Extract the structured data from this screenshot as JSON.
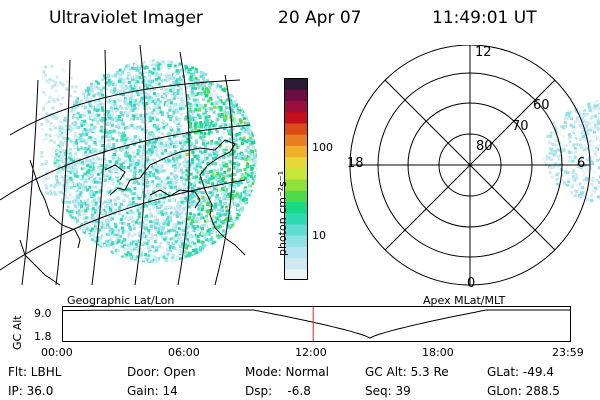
{
  "header": {
    "title": "Ultraviolet Imager",
    "date": "20 Apr 07",
    "time": "11:49:01 UT"
  },
  "colorbar": {
    "unit_label": "photon cm⁻²s⁻¹",
    "tick_high": "100",
    "tick_low": "10",
    "colors": [
      "#e9f4f6",
      "#cfe9f2",
      "#b5e5ee",
      "#8fe1e6",
      "#5fdccf",
      "#2fd9b4",
      "#16d985",
      "#4ddb4a",
      "#8fe03a",
      "#c6e63a",
      "#e6d734",
      "#f0ae2a",
      "#e97f1e",
      "#dc4a16",
      "#c2101c",
      "#9a0f3a",
      "#6e0c42",
      "#2c1b36"
    ]
  },
  "map_labels": {
    "left": "Geographic Lat/Lon",
    "right": "Apex MLat/MLT"
  },
  "polar": {
    "lat_labels": [
      "80",
      "70",
      "60"
    ],
    "mlt_labels": {
      "top": "12",
      "left": "18",
      "right": "6",
      "bottom": "0"
    }
  },
  "altitude_plot": {
    "ylabel": "GC Alt",
    "ytick_top": "9.0",
    "ytick_bottom": "1.8",
    "x_labels": [
      "00:00",
      "06:00",
      "12:00",
      "18:00",
      "23:59"
    ],
    "x_hours": [
      0,
      6,
      12,
      18,
      23.98
    ],
    "marker_hour": 11.82,
    "min_hour": 14.5,
    "ymin": 1.8,
    "ymax": 9.0
  },
  "info": {
    "filter": "Flt: LBHL",
    "ip": "IP: 36.0",
    "door": "Door: Open",
    "gain": "Gain: 14",
    "mode": "Mode: Normal",
    "dsp": "Dsp:    -6.8",
    "gc_alt": "GC Alt: 5.3 Re",
    "seq": "Seq: 39",
    "glat": "GLat: -49.4",
    "glon": "GLon: 288.5"
  }
}
